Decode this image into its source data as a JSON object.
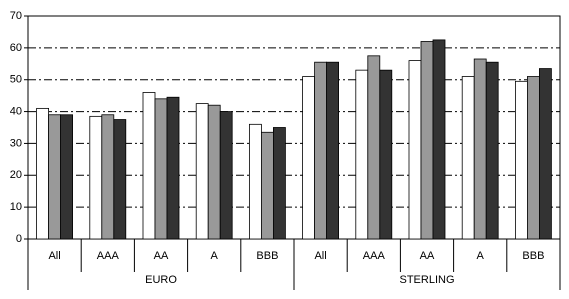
{
  "chart_data": {
    "type": "bar",
    "groups": [
      {
        "label": "EURO",
        "categories": [
          "All",
          "AAA",
          "AA",
          "A",
          "BBB"
        ]
      },
      {
        "label": "STERLING",
        "categories": [
          "All",
          "AAA",
          "AA",
          "A",
          "BBB"
        ]
      }
    ],
    "series": [
      {
        "color": "#ffffff",
        "values": [
          41,
          38.5,
          46,
          42.5,
          36,
          51,
          53,
          56,
          51,
          49.5
        ]
      },
      {
        "color": "#999999",
        "values": [
          39,
          39,
          44,
          42,
          33.5,
          55.5,
          57.5,
          62,
          56.5,
          51
        ]
      },
      {
        "color": "#333333",
        "values": [
          39,
          37.5,
          44.5,
          40,
          35,
          55.5,
          53,
          62.5,
          55.5,
          53.5
        ]
      }
    ],
    "ylim": [
      0,
      70
    ],
    "yticks": [
      0,
      10,
      20,
      30,
      40,
      50,
      60,
      70
    ],
    "grid": true
  }
}
